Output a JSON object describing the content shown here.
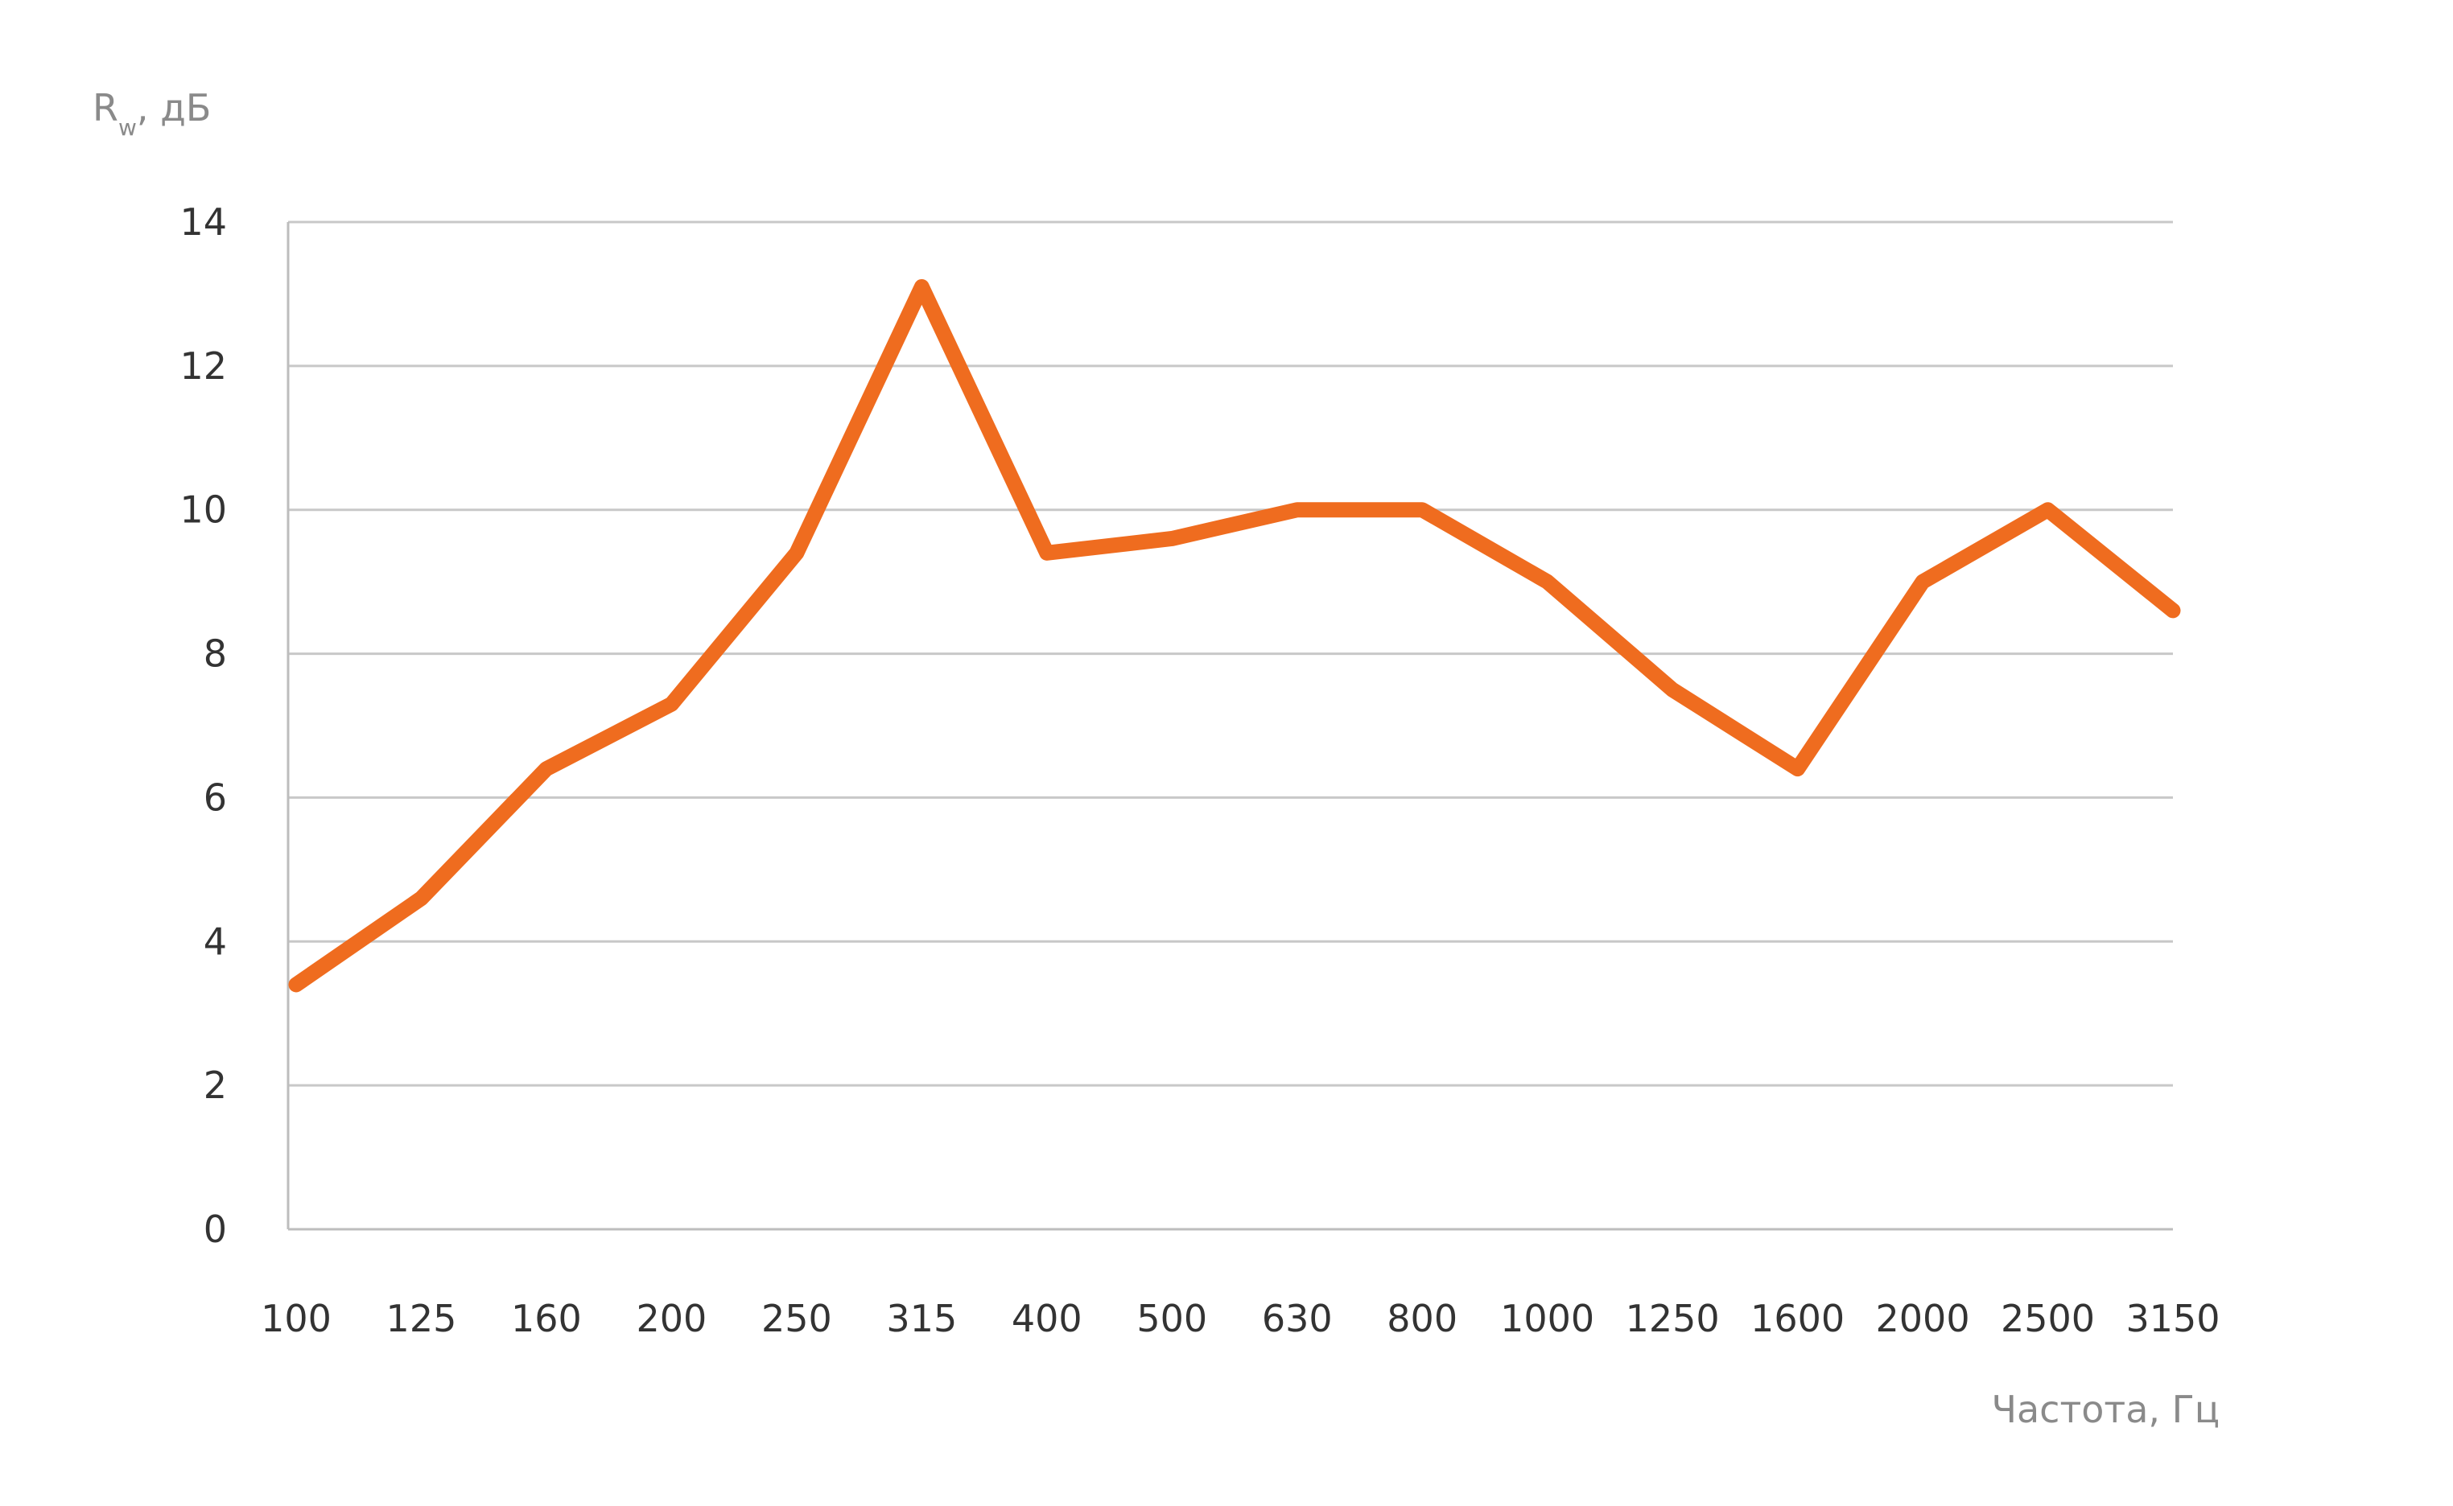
{
  "chart_data": {
    "type": "line",
    "title": "",
    "ylabel": {
      "main": "R",
      "subscript": "w",
      "rest": ", дБ"
    },
    "xlabel": "Частота, Гц",
    "categories": [
      "100",
      "125",
      "160",
      "200",
      "250",
      "315",
      "400",
      "500",
      "630",
      "800",
      "1000",
      "1250",
      "1600",
      "2000",
      "2500",
      "3150"
    ],
    "y_ticks": [
      "0",
      "2",
      "4",
      "6",
      "8",
      "10",
      "12",
      "14"
    ],
    "ylim": [
      0,
      14
    ],
    "grid": true,
    "legend": "none",
    "series": [
      {
        "values": [
          3.4,
          4.6,
          6.4,
          7.3,
          9.4,
          13.1,
          9.4,
          9.6,
          10.0,
          10.0,
          9.0,
          7.5,
          6.4,
          9.0,
          10.0,
          8.6
        ],
        "color": "#ef6c1f"
      }
    ],
    "colors": {
      "line": "#ef6c1f",
      "grid": "#c8c8c8",
      "axis": "#bdbdbd",
      "label": "#8a8a8a",
      "tick": "#333333"
    }
  }
}
